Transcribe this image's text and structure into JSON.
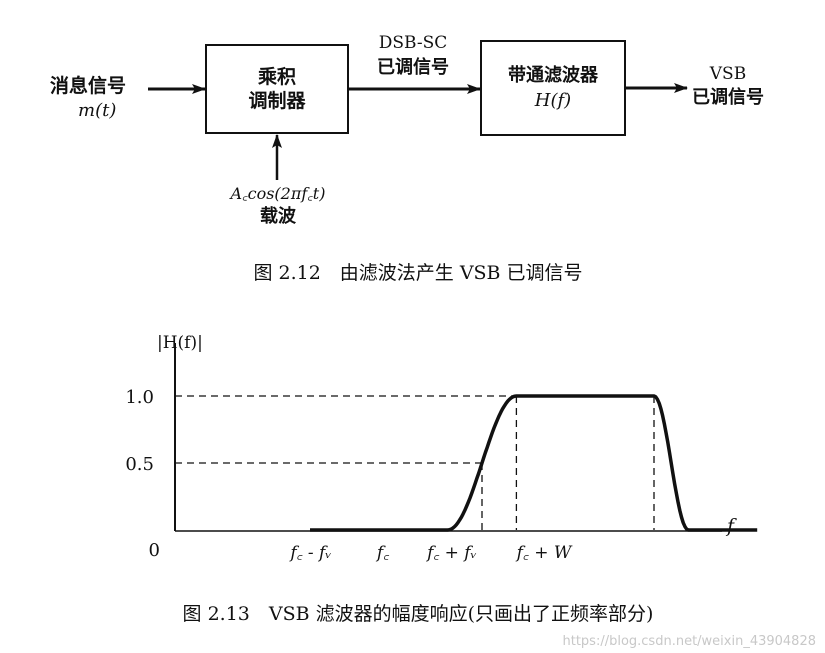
{
  "diagram": {
    "input_label": "消息信号",
    "input_symbol": "m(t)",
    "block1_line1": "乘积",
    "block1_line2": "调制器",
    "mid_label_line1": "DSB-SC",
    "mid_label_line2": "已调信号",
    "block2_line1": "带通滤波器",
    "block2_line2": "H(f)",
    "output_label_line1": "VSB",
    "output_label_line2": "已调信号",
    "carrier_expr": "A꜀cos(2πf꜀t)",
    "carrier_label": "载波",
    "caption": "图 2.12　由滤波法产生 VSB 已调信号"
  },
  "chart_data": {
    "type": "line",
    "ylabel": "|H(f)|",
    "xlabel": "f",
    "y_ticks": [
      "1.0",
      "0.5",
      "0"
    ],
    "x_ticks": [
      "f꜀ - fᵥ",
      "f꜀",
      "f꜀ + fᵥ",
      "f꜀ + W"
    ],
    "series": [
      {
        "x": [
          0.0,
          0.8,
          1.0,
          1.2,
          2.0,
          2.2,
          2.6
        ],
        "y": [
          0.0,
          0.0,
          0.5,
          1.0,
          1.0,
          0.0,
          0.0
        ]
      }
    ],
    "reference_levels": [
      1.0,
      0.5
    ],
    "caption": "图 2.13　VSB 滤波器的幅度响应(只画出了正频率部分)"
  },
  "watermark": "https://blog.csdn.net/weixin_43904828"
}
